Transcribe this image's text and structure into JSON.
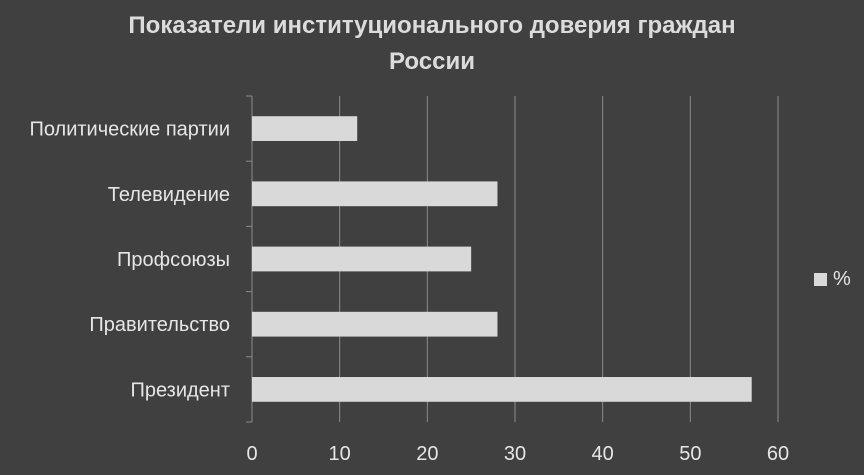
{
  "chart_data": {
    "type": "bar",
    "orientation": "horizontal",
    "title_lines": [
      "Показатели институционального доверия граждан",
      "России"
    ],
    "categories": [
      "Политические партии",
      "Телевидение",
      "Профсоюзы",
      "Правительство",
      "Президент"
    ],
    "series": [
      {
        "name": "%",
        "values": [
          12,
          28,
          25,
          28,
          57
        ],
        "color": "#d9d9d9"
      }
    ],
    "xlim": [
      0,
      60
    ],
    "x_ticks": [
      0,
      10,
      20,
      30,
      40,
      50,
      60
    ],
    "grid": "vertical",
    "legend_position": "right",
    "background_color": "#404040",
    "gridline_color": "#8c8c8c"
  }
}
